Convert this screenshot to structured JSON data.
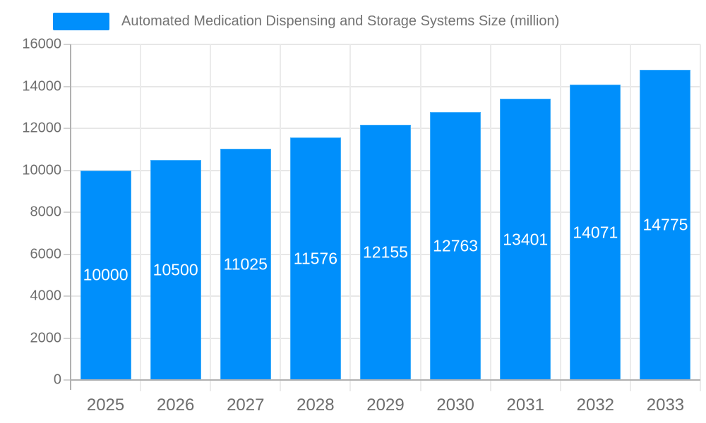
{
  "legend": {
    "label": "Automated Medication Dispensing and Storage Systems Size (million)",
    "swatch_icon": "series-swatch-icon",
    "position": "top"
  },
  "colors": {
    "bar": "#008FFB",
    "bar_edge": "#40aefc",
    "bar_label_text": "#ffffff",
    "axis_text": "#6e6e6e",
    "legend_text": "#737373",
    "gridline": "#e7e7e7",
    "axis_line": "#b1b1b1",
    "background": "#ffffff"
  },
  "chart_data": {
    "type": "bar",
    "title": "",
    "series_name": "Automated Medication Dispensing and Storage Systems Size (million)",
    "categories": [
      "2025",
      "2026",
      "2027",
      "2028",
      "2029",
      "2030",
      "2031",
      "2032",
      "2033"
    ],
    "values": [
      10000,
      10500,
      11025,
      11576,
      12155,
      12763,
      13401,
      14071,
      14775
    ],
    "data_labels": [
      "10000",
      "10500",
      "11025",
      "11576",
      "12155",
      "12763",
      "13401",
      "14071",
      "14775"
    ],
    "xlabel": "",
    "ylabel": "",
    "ylim": [
      0,
      16000
    ],
    "yticks": [
      0,
      2000,
      4000,
      6000,
      8000,
      10000,
      12000,
      14000,
      16000
    ],
    "ytick_labels": [
      "0",
      "2000",
      "4000",
      "6000",
      "8000",
      "10000",
      "12000",
      "14000",
      "16000"
    ],
    "grid": "on",
    "legend_position": "top",
    "data_label_position": "middle-of-bar"
  }
}
